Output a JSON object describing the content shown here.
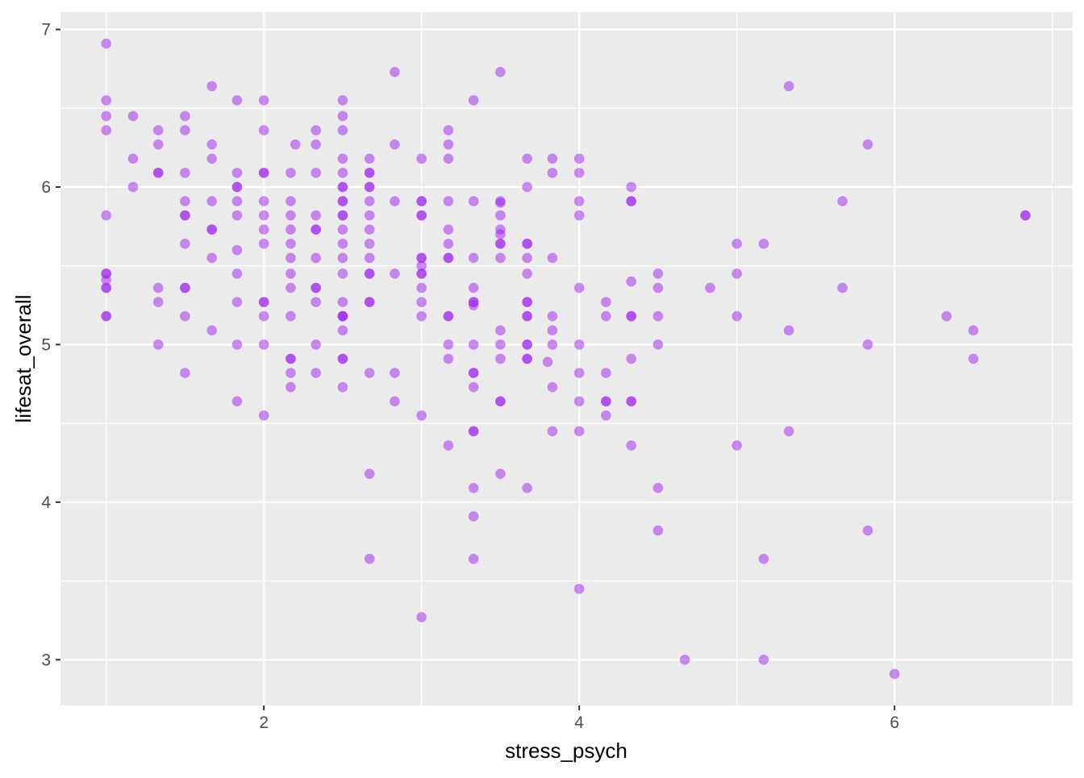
{
  "chart_data": {
    "type": "scatter",
    "xlabel": "stress_psych",
    "ylabel": "lifesat_overall",
    "xlim": [
      0.71,
      7.13
    ],
    "ylim": [
      2.71,
      7.11
    ],
    "xticks": [
      2,
      4,
      6
    ],
    "yticks": [
      3,
      4,
      5,
      6,
      7
    ],
    "xtick_labels": [
      "2",
      "4",
      "6"
    ],
    "ytick_labels": [
      "3",
      "4",
      "5",
      "6",
      "7"
    ],
    "grid": true,
    "point_color": "#a020f0",
    "point_alpha": 0.5,
    "background": "#ebebeb",
    "points": [
      [
        1,
        6.91
      ],
      [
        1,
        6.55
      ],
      [
        1,
        6.45
      ],
      [
        1,
        6.36
      ],
      [
        1,
        5.82
      ],
      [
        1,
        5.45
      ],
      [
        1,
        5.41
      ],
      [
        1,
        5.36
      ],
      [
        1,
        5.18
      ],
      [
        1,
        5.45
      ],
      [
        1,
        5.36
      ],
      [
        1,
        5.18
      ],
      [
        1.17,
        6.45
      ],
      [
        1.17,
        6.18
      ],
      [
        1.17,
        6.0
      ],
      [
        1.33,
        6.36
      ],
      [
        1.33,
        6.27
      ],
      [
        1.33,
        6.09
      ],
      [
        1.33,
        6.09
      ],
      [
        1.33,
        5.36
      ],
      [
        1.33,
        5.27
      ],
      [
        1.33,
        5.0
      ],
      [
        1.5,
        6.45
      ],
      [
        1.5,
        6.36
      ],
      [
        1.5,
        6.09
      ],
      [
        1.5,
        5.91
      ],
      [
        1.5,
        5.82
      ],
      [
        1.5,
        5.82
      ],
      [
        1.5,
        5.64
      ],
      [
        1.5,
        5.36
      ],
      [
        1.5,
        5.36
      ],
      [
        1.5,
        5.18
      ],
      [
        1.5,
        4.82
      ],
      [
        1.67,
        6.64
      ],
      [
        1.67,
        6.27
      ],
      [
        1.67,
        6.18
      ],
      [
        1.67,
        5.91
      ],
      [
        1.67,
        5.73
      ],
      [
        1.67,
        5.73
      ],
      [
        1.67,
        5.55
      ],
      [
        1.67,
        5.09
      ],
      [
        1.83,
        6.55
      ],
      [
        1.83,
        6.09
      ],
      [
        1.83,
        6.0
      ],
      [
        1.83,
        6.0
      ],
      [
        1.83,
        5.91
      ],
      [
        1.83,
        5.82
      ],
      [
        1.83,
        5.6
      ],
      [
        1.83,
        5.45
      ],
      [
        1.83,
        5.27
      ],
      [
        1.83,
        5.0
      ],
      [
        1.83,
        4.64
      ],
      [
        2,
        6.55
      ],
      [
        2,
        6.36
      ],
      [
        2,
        6.09
      ],
      [
        2,
        6.09
      ],
      [
        2,
        5.91
      ],
      [
        2,
        5.82
      ],
      [
        2,
        5.73
      ],
      [
        2,
        5.64
      ],
      [
        2,
        5.27
      ],
      [
        2,
        5.27
      ],
      [
        2,
        5.18
      ],
      [
        2,
        5.0
      ],
      [
        2,
        4.55
      ],
      [
        2.17,
        6.09
      ],
      [
        2.17,
        5.91
      ],
      [
        2.17,
        5.82
      ],
      [
        2.17,
        5.73
      ],
      [
        2.17,
        5.64
      ],
      [
        2.17,
        5.55
      ],
      [
        2.17,
        5.45
      ],
      [
        2.17,
        5.36
      ],
      [
        2.17,
        5.18
      ],
      [
        2.17,
        4.91
      ],
      [
        2.17,
        4.91
      ],
      [
        2.17,
        4.82
      ],
      [
        2.17,
        4.73
      ],
      [
        2.2,
        6.27
      ],
      [
        2.33,
        6.36
      ],
      [
        2.33,
        6.27
      ],
      [
        2.33,
        6.09
      ],
      [
        2.33,
        5.82
      ],
      [
        2.33,
        5.73
      ],
      [
        2.33,
        5.73
      ],
      [
        2.33,
        5.55
      ],
      [
        2.33,
        5.36
      ],
      [
        2.33,
        5.36
      ],
      [
        2.33,
        5.27
      ],
      [
        2.33,
        5.0
      ],
      [
        2.33,
        4.82
      ],
      [
        2.5,
        6.55
      ],
      [
        2.5,
        6.45
      ],
      [
        2.5,
        6.36
      ],
      [
        2.5,
        6.18
      ],
      [
        2.5,
        6.09
      ],
      [
        2.5,
        6.0
      ],
      [
        2.5,
        6.0
      ],
      [
        2.5,
        5.91
      ],
      [
        2.5,
        5.91
      ],
      [
        2.5,
        5.82
      ],
      [
        2.5,
        5.82
      ],
      [
        2.5,
        5.73
      ],
      [
        2.5,
        5.64
      ],
      [
        2.5,
        5.55
      ],
      [
        2.5,
        5.45
      ],
      [
        2.5,
        5.27
      ],
      [
        2.5,
        5.18
      ],
      [
        2.5,
        5.18
      ],
      [
        2.5,
        5.18
      ],
      [
        2.5,
        5.09
      ],
      [
        2.5,
        4.91
      ],
      [
        2.5,
        4.91
      ],
      [
        2.5,
        4.73
      ],
      [
        2.67,
        6.18
      ],
      [
        2.67,
        6.09
      ],
      [
        2.67,
        6.09
      ],
      [
        2.67,
        6.0
      ],
      [
        2.67,
        6.0
      ],
      [
        2.67,
        5.91
      ],
      [
        2.67,
        5.82
      ],
      [
        2.67,
        5.73
      ],
      [
        2.67,
        5.64
      ],
      [
        2.67,
        5.55
      ],
      [
        2.67,
        5.45
      ],
      [
        2.67,
        5.45
      ],
      [
        2.67,
        5.27
      ],
      [
        2.67,
        5.27
      ],
      [
        2.67,
        4.82
      ],
      [
        2.67,
        4.18
      ],
      [
        2.67,
        3.64
      ],
      [
        2.83,
        6.73
      ],
      [
        2.83,
        6.27
      ],
      [
        2.83,
        5.91
      ],
      [
        2.83,
        5.45
      ],
      [
        2.83,
        4.82
      ],
      [
        2.83,
        4.64
      ],
      [
        3,
        6.18
      ],
      [
        3,
        5.91
      ],
      [
        3,
        5.91
      ],
      [
        3,
        5.82
      ],
      [
        3,
        5.82
      ],
      [
        3,
        5.55
      ],
      [
        3,
        5.55
      ],
      [
        3,
        5.5
      ],
      [
        3,
        5.45
      ],
      [
        3,
        5.45
      ],
      [
        3,
        5.36
      ],
      [
        3,
        5.27
      ],
      [
        3,
        5.18
      ],
      [
        3,
        4.55
      ],
      [
        3,
        3.27
      ],
      [
        3.17,
        6.36
      ],
      [
        3.17,
        6.27
      ],
      [
        3.17,
        6.18
      ],
      [
        3.17,
        5.91
      ],
      [
        3.17,
        5.73
      ],
      [
        3.17,
        5.64
      ],
      [
        3.17,
        5.55
      ],
      [
        3.17,
        5.55
      ],
      [
        3.17,
        5.18
      ],
      [
        3.17,
        5.18
      ],
      [
        3.17,
        5.0
      ],
      [
        3.17,
        4.91
      ],
      [
        3.17,
        4.36
      ],
      [
        3.33,
        6.55
      ],
      [
        3.33,
        5.91
      ],
      [
        3.33,
        5.55
      ],
      [
        3.33,
        5.36
      ],
      [
        3.33,
        5.27
      ],
      [
        3.33,
        5.27
      ],
      [
        3.33,
        5.25
      ],
      [
        3.33,
        5.0
      ],
      [
        3.33,
        4.82
      ],
      [
        3.33,
        4.82
      ],
      [
        3.33,
        4.73
      ],
      [
        3.33,
        4.45
      ],
      [
        3.33,
        4.45
      ],
      [
        3.33,
        4.09
      ],
      [
        3.33,
        3.91
      ],
      [
        3.33,
        3.64
      ],
      [
        3.5,
        6.73
      ],
      [
        3.5,
        5.91
      ],
      [
        3.5,
        5.9
      ],
      [
        3.5,
        5.82
      ],
      [
        3.5,
        5.73
      ],
      [
        3.5,
        5.7
      ],
      [
        3.5,
        5.64
      ],
      [
        3.5,
        5.64
      ],
      [
        3.5,
        5.55
      ],
      [
        3.5,
        5.09
      ],
      [
        3.5,
        5.0
      ],
      [
        3.5,
        4.91
      ],
      [
        3.5,
        4.64
      ],
      [
        3.5,
        4.64
      ],
      [
        3.5,
        4.18
      ],
      [
        3.67,
        6.18
      ],
      [
        3.67,
        6.0
      ],
      [
        3.67,
        5.64
      ],
      [
        3.67,
        5.64
      ],
      [
        3.67,
        5.55
      ],
      [
        3.67,
        5.45
      ],
      [
        3.67,
        5.27
      ],
      [
        3.67,
        5.27
      ],
      [
        3.67,
        5.18
      ],
      [
        3.67,
        5.18
      ],
      [
        3.67,
        5.0
      ],
      [
        3.67,
        5.0
      ],
      [
        3.67,
        4.91
      ],
      [
        3.67,
        4.91
      ],
      [
        3.67,
        4.09
      ],
      [
        3.8,
        4.89
      ],
      [
        3.83,
        6.18
      ],
      [
        3.83,
        6.09
      ],
      [
        3.83,
        5.55
      ],
      [
        3.83,
        5.18
      ],
      [
        3.83,
        5.09
      ],
      [
        3.83,
        5.0
      ],
      [
        3.83,
        4.73
      ],
      [
        3.83,
        4.45
      ],
      [
        4,
        6.18
      ],
      [
        4,
        6.09
      ],
      [
        4,
        5.91
      ],
      [
        4,
        5.82
      ],
      [
        4,
        5.36
      ],
      [
        4,
        5.0
      ],
      [
        4,
        4.82
      ],
      [
        4,
        4.64
      ],
      [
        4,
        4.45
      ],
      [
        4,
        3.45
      ],
      [
        4.17,
        5.27
      ],
      [
        4.17,
        5.18
      ],
      [
        4.17,
        4.82
      ],
      [
        4.17,
        4.64
      ],
      [
        4.17,
        4.64
      ],
      [
        4.17,
        4.55
      ],
      [
        4.33,
        6.0
      ],
      [
        4.33,
        5.91
      ],
      [
        4.33,
        5.91
      ],
      [
        4.33,
        5.4
      ],
      [
        4.33,
        5.18
      ],
      [
        4.33,
        5.18
      ],
      [
        4.33,
        4.91
      ],
      [
        4.33,
        4.64
      ],
      [
        4.33,
        4.64
      ],
      [
        4.33,
        4.36
      ],
      [
        4.5,
        5.45
      ],
      [
        4.5,
        5.36
      ],
      [
        4.5,
        5.18
      ],
      [
        4.5,
        5.0
      ],
      [
        4.5,
        4.09
      ],
      [
        4.5,
        3.82
      ],
      [
        4.67,
        3.0
      ],
      [
        4.83,
        5.36
      ],
      [
        5,
        5.64
      ],
      [
        5,
        5.45
      ],
      [
        5,
        5.18
      ],
      [
        5,
        4.36
      ],
      [
        5.17,
        5.64
      ],
      [
        5.17,
        3.64
      ],
      [
        5.17,
        3.0
      ],
      [
        5.33,
        6.64
      ],
      [
        5.33,
        5.09
      ],
      [
        5.33,
        4.45
      ],
      [
        5.67,
        5.91
      ],
      [
        5.67,
        5.36
      ],
      [
        5.83,
        6.27
      ],
      [
        5.83,
        5.0
      ],
      [
        5.83,
        3.82
      ],
      [
        6,
        2.91
      ],
      [
        6.33,
        5.18
      ],
      [
        6.5,
        5.09
      ],
      [
        6.5,
        4.91
      ],
      [
        6.83,
        5.82
      ],
      [
        6.83,
        5.82
      ]
    ]
  }
}
